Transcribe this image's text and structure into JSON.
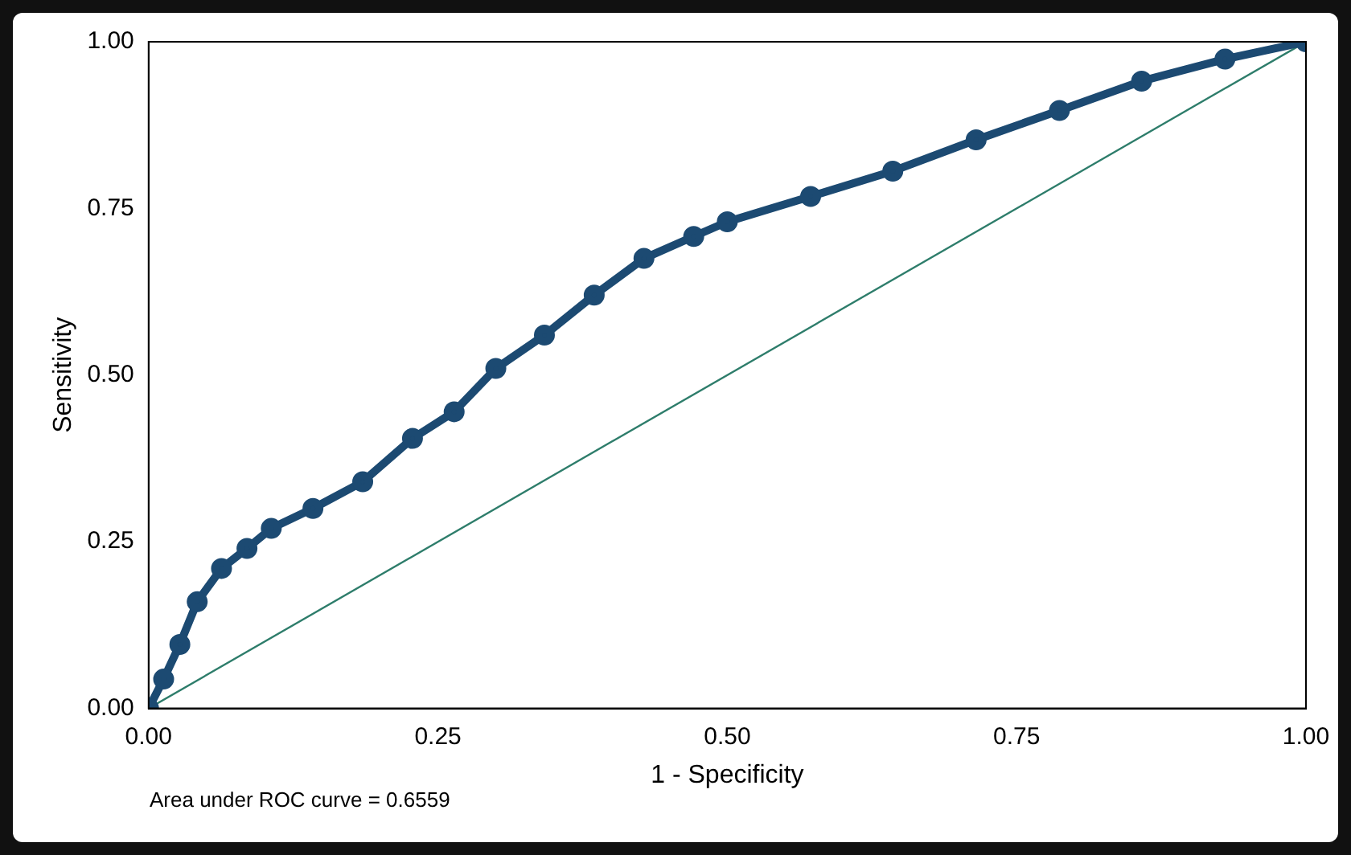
{
  "chart_data": {
    "type": "line",
    "xlabel": "1 - Specificity",
    "ylabel": "Sensitivity",
    "xlim": [
      0,
      1
    ],
    "ylim": [
      0,
      1
    ],
    "xticks": [
      {
        "value": 0,
        "label": "0.00"
      },
      {
        "value": 0.25,
        "label": "0.25"
      },
      {
        "value": 0.5,
        "label": "0.50"
      },
      {
        "value": 0.75,
        "label": "0.75"
      },
      {
        "value": 1,
        "label": "1.00"
      }
    ],
    "yticks": [
      {
        "value": 0,
        "label": "0.00"
      },
      {
        "value": 0.25,
        "label": "0.25"
      },
      {
        "value": 0.5,
        "label": "0.50"
      },
      {
        "value": 0.75,
        "label": "0.75"
      },
      {
        "value": 1,
        "label": "1.00"
      }
    ],
    "grid": false,
    "legend": false,
    "annotations": [
      "Area under ROC curve = 0.6559"
    ],
    "series": [
      {
        "color": "#1c4a72",
        "marker": "circle",
        "x": [
          0,
          0.013,
          0.027,
          0.042,
          0.063,
          0.085,
          0.106,
          0.142,
          0.185,
          0.228,
          0.264,
          0.3,
          0.342,
          0.385,
          0.428,
          0.471,
          0.5,
          0.572,
          0.643,
          0.715,
          0.787,
          0.858,
          0.93,
          1
        ],
        "values": [
          0,
          0.044,
          0.096,
          0.16,
          0.21,
          0.24,
          0.27,
          0.3,
          0.34,
          0.405,
          0.445,
          0.51,
          0.56,
          0.62,
          0.675,
          0.708,
          0.73,
          0.768,
          0.806,
          0.853,
          0.897,
          0.941,
          0.974,
          1
        ]
      },
      {
        "color": "#2e7d6b",
        "marker": "none",
        "x": [
          0,
          1
        ],
        "values": [
          0,
          1
        ]
      }
    ]
  }
}
